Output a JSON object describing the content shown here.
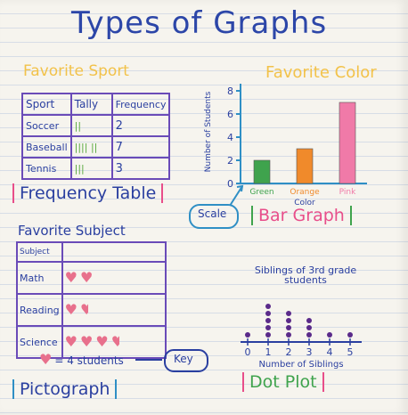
{
  "title": "Types of Graphs",
  "frequency_table": {
    "heading": "Favorite Sport",
    "columns": [
      "Sport",
      "Tally",
      "Frequency"
    ],
    "rows": [
      {
        "sport": "Soccer",
        "tally": "||",
        "frequency": "2"
      },
      {
        "sport": "Baseball",
        "tally": "|||| ||",
        "frequency": "7"
      },
      {
        "sport": "Tennis",
        "tally": "|||",
        "frequency": "3"
      }
    ],
    "label": "Frequency Table"
  },
  "bar_graph": {
    "heading": "Favorite Color",
    "ylabel": "Number of Students",
    "xlabel": "Color",
    "yticks": [
      "0",
      "2",
      "4",
      "6",
      "8"
    ],
    "categories": [
      "Green",
      "Orange",
      "Pink"
    ],
    "values": [
      2,
      3,
      7
    ],
    "colors": [
      "#3fa34d",
      "#f08a2b",
      "#f07aa8"
    ],
    "scale_callout": "Scale",
    "label": "Bar Graph"
  },
  "pictograph": {
    "heading": "Favorite Subject",
    "header_cell": "Subject",
    "rows": [
      {
        "subject": "Math",
        "hearts": 2,
        "half": false
      },
      {
        "subject": "Reading",
        "hearts": 1,
        "half": true
      },
      {
        "subject": "Science",
        "hearts": 3,
        "half": true
      }
    ],
    "key_text": "= 4 students",
    "key_callout": "Key",
    "label": "Pictograph"
  },
  "dot_plot": {
    "title": "Siblings of 3rd grade students",
    "ticks": [
      "0",
      "1",
      "2",
      "3",
      "4",
      "5"
    ],
    "counts": [
      1,
      5,
      4,
      3,
      1,
      1
    ],
    "xlabel": "Number of Siblings",
    "label": "Dot Plot"
  }
}
